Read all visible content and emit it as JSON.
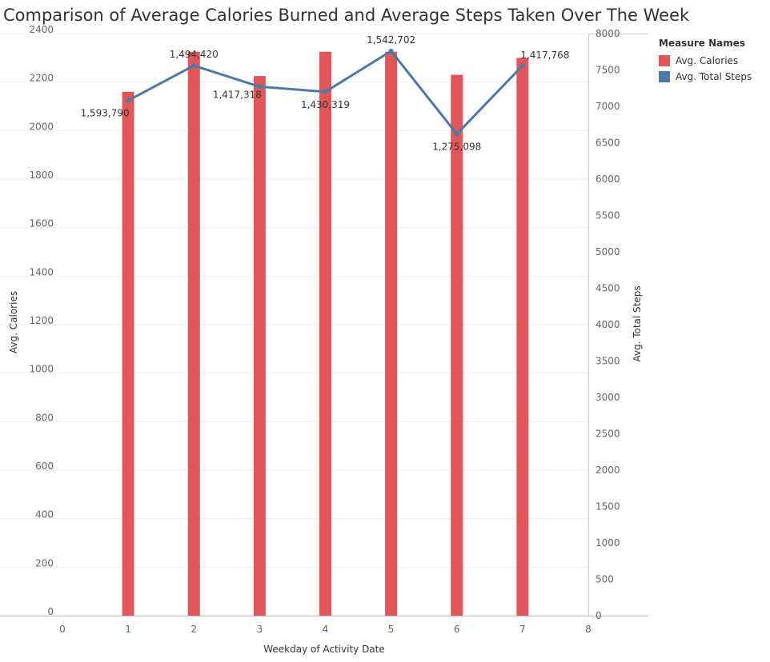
{
  "chart_data": {
    "type": "bar",
    "title": "Comparison of Average Calories Burned and Average Steps Taken Over The Week",
    "xlabel": "Weekday of Activity Date",
    "ylabel": "Avg. Calories",
    "y2label": "Avg. Total Steps",
    "x": [
      1,
      2,
      3,
      4,
      5,
      6,
      7
    ],
    "xlim": [
      0,
      8
    ],
    "xticks": [
      0,
      1,
      2,
      3,
      4,
      5,
      6,
      7,
      8
    ],
    "ylim": [
      0,
      2400
    ],
    "yticks": [
      0,
      200,
      400,
      600,
      800,
      1000,
      1200,
      1400,
      1600,
      1800,
      2000,
      2200,
      2400
    ],
    "y2lim": [
      0,
      8000
    ],
    "y2ticks": [
      0,
      500,
      1000,
      1500,
      2000,
      2500,
      3000,
      3500,
      4000,
      4500,
      5000,
      5500,
      6000,
      6500,
      7000,
      7500,
      8000
    ],
    "grid": true,
    "legend": {
      "title": "Measure Names",
      "position": "right"
    },
    "series": [
      {
        "name": "Avg. Calories",
        "type": "bar",
        "axis": "left",
        "color": "#e15759",
        "values": [
          2160,
          2325,
          2225,
          2325,
          2325,
          2230,
          2300
        ]
      },
      {
        "name": "Avg. Total Steps",
        "type": "line",
        "axis": "right",
        "color": "#4e79a7",
        "values": [
          7080,
          7560,
          7270,
          7200,
          7760,
          6620,
          7560
        ],
        "labels": [
          "1,593,790",
          "1,494,420",
          "1,417,318",
          "1,430,319",
          "1,542,702",
          "1,275,098",
          "1,417,768"
        ]
      }
    ]
  }
}
